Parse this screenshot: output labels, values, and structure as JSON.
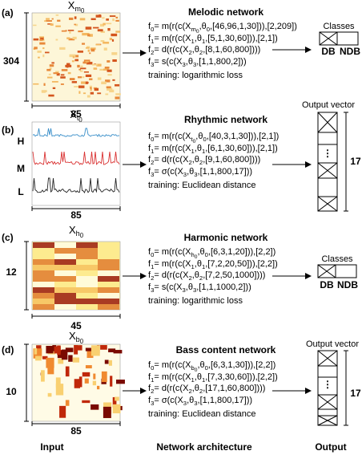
{
  "panels": [
    {
      "label": "(a)",
      "input_title": [
        {
          "t": "X"
        },
        {
          "s": "m"
        },
        {
          "ss": "0"
        }
      ],
      "height_label": "304",
      "width_label": "85",
      "network": "Melodic network",
      "formulas": [
        [
          {
            "t": "f"
          },
          {
            "s": "0"
          },
          {
            "t": "= m(r(c(X"
          },
          {
            "s": "m"
          },
          {
            "ss": "0"
          },
          {
            "t": ",θ"
          },
          {
            "s": "0"
          },
          {
            "t": ",[46,96,1,30])),[2,209])"
          }
        ],
        [
          {
            "t": "f"
          },
          {
            "s": "1"
          },
          {
            "t": "= m(r(c(X"
          },
          {
            "s": "1"
          },
          {
            "t": ",θ"
          },
          {
            "s": "1"
          },
          {
            "t": ",[5,1,30,60])),[2,1])"
          }
        ],
        [
          {
            "t": "f"
          },
          {
            "s": "2"
          },
          {
            "t": "= d(r(c(X"
          },
          {
            "s": "2"
          },
          {
            "t": ",θ"
          },
          {
            "s": "2"
          },
          {
            "t": ",[8,1,60,800])))"
          }
        ],
        [
          {
            "t": "f"
          },
          {
            "s": "3"
          },
          {
            "t": "= s(c(X"
          },
          {
            "s": "3"
          },
          {
            "t": ",θ"
          },
          {
            "s": "3"
          },
          {
            "t": ",[1,1,800,2]))"
          }
        ],
        [
          {
            "t": "training: logarithmic loss"
          }
        ]
      ],
      "output": {
        "title": "Classes",
        "classes": [
          "DB",
          "NDB"
        ]
      }
    },
    {
      "label": "(b)",
      "input_title": [
        {
          "t": "X"
        },
        {
          "s": "t"
        },
        {
          "ss": "0"
        }
      ],
      "row_labels": [
        "H",
        "M",
        "L"
      ],
      "width_label": "85",
      "network": "Rhythmic network",
      "formulas": [
        [
          {
            "t": "f"
          },
          {
            "s": "0"
          },
          {
            "t": "= m(r(c(X"
          },
          {
            "s": "t"
          },
          {
            "ss": "0"
          },
          {
            "t": ",θ"
          },
          {
            "s": "0"
          },
          {
            "t": ",[40,3,1,30])),[2,1])"
          }
        ],
        [
          {
            "t": "f"
          },
          {
            "s": "1"
          },
          {
            "t": "= m(r(c(X"
          },
          {
            "s": "1"
          },
          {
            "t": ",θ"
          },
          {
            "s": "1"
          },
          {
            "t": ",[6,1,30,60])),[2,1])"
          }
        ],
        [
          {
            "t": "f"
          },
          {
            "s": "2"
          },
          {
            "t": "= d(r(c(X"
          },
          {
            "s": "2"
          },
          {
            "t": ",θ"
          },
          {
            "s": "2"
          },
          {
            "t": ",[9,1,60,800])))"
          }
        ],
        [
          {
            "t": "f"
          },
          {
            "s": "3"
          },
          {
            "t": "= σ(c(X"
          },
          {
            "s": "3"
          },
          {
            "t": ",θ"
          },
          {
            "s": "3"
          },
          {
            "t": ",[1,1,800,17]))"
          }
        ],
        [
          {
            "t": "training: Euclidean distance"
          }
        ]
      ],
      "output": {
        "title": "Output vector",
        "ellipsis": "⋮",
        "size": "17"
      }
    },
    {
      "label": "(c)",
      "input_title": [
        {
          "t": "X"
        },
        {
          "s": "h"
        },
        {
          "ss": "0"
        }
      ],
      "height_label": "12",
      "width_label": "45",
      "network": "Harmonic network",
      "formulas": [
        [
          {
            "t": "f"
          },
          {
            "s": "0"
          },
          {
            "t": "= m(r(c(X"
          },
          {
            "s": "h"
          },
          {
            "ss": "0"
          },
          {
            "t": ",θ"
          },
          {
            "s": "0"
          },
          {
            "t": ",[6,3,1,20])),[2,2])"
          }
        ],
        [
          {
            "t": "f"
          },
          {
            "s": "1"
          },
          {
            "t": "= m(r(c(X"
          },
          {
            "s": "1"
          },
          {
            "t": ",θ"
          },
          {
            "s": "1"
          },
          {
            "t": ",[7,2,20,50])),[2,2])"
          }
        ],
        [
          {
            "t": "f"
          },
          {
            "s": "2"
          },
          {
            "t": "= d(r(c(X"
          },
          {
            "s": "2"
          },
          {
            "t": ",θ"
          },
          {
            "s": "2"
          },
          {
            "t": ",[7,2,50,1000])))"
          }
        ],
        [
          {
            "t": "f"
          },
          {
            "s": "3"
          },
          {
            "t": "= s(c(X"
          },
          {
            "s": "3"
          },
          {
            "t": ",θ"
          },
          {
            "s": "3"
          },
          {
            "t": ",[1,1,1000,2]))"
          }
        ],
        [
          {
            "t": "training: logarithmic loss"
          }
        ]
      ],
      "output": {
        "title": "Classes",
        "classes": [
          "DB",
          "NDB"
        ]
      }
    },
    {
      "label": "(d)",
      "input_title": [
        {
          "t": "X"
        },
        {
          "s": "b"
        },
        {
          "ss": "0"
        }
      ],
      "height_label": "10",
      "width_label": "85",
      "network": "Bass content network",
      "formulas": [
        [
          {
            "t": "f"
          },
          {
            "s": "0"
          },
          {
            "t": "= m(r(c(X"
          },
          {
            "s": "b"
          },
          {
            "ss": "0"
          },
          {
            "t": ",θ"
          },
          {
            "s": "0"
          },
          {
            "t": ",[6,3,1,30])),[2,2])"
          }
        ],
        [
          {
            "t": "f"
          },
          {
            "s": "1"
          },
          {
            "t": "= m(r(c(X"
          },
          {
            "s": "1"
          },
          {
            "t": ",θ"
          },
          {
            "s": "1"
          },
          {
            "t": ",[7,3,30,60])),[2,2])"
          }
        ],
        [
          {
            "t": "f"
          },
          {
            "s": "2"
          },
          {
            "t": "= d(r(c(X"
          },
          {
            "s": "2"
          },
          {
            "t": ",θ"
          },
          {
            "s": "2"
          },
          {
            "t": ",[17,1,60,800])))"
          }
        ],
        [
          {
            "t": "f"
          },
          {
            "s": "3"
          },
          {
            "t": "= σ(c(X"
          },
          {
            "s": "3"
          },
          {
            "t": ",θ"
          },
          {
            "s": "3"
          },
          {
            "t": ",[1,1,800,17]))"
          }
        ],
        [
          {
            "t": "training: Euclidean distance"
          }
        ]
      ],
      "output": {
        "title": "Output vector",
        "ellipsis": "⋮",
        "size": "17"
      }
    }
  ],
  "footer": [
    "Input",
    "Network architecture",
    "Output"
  ]
}
